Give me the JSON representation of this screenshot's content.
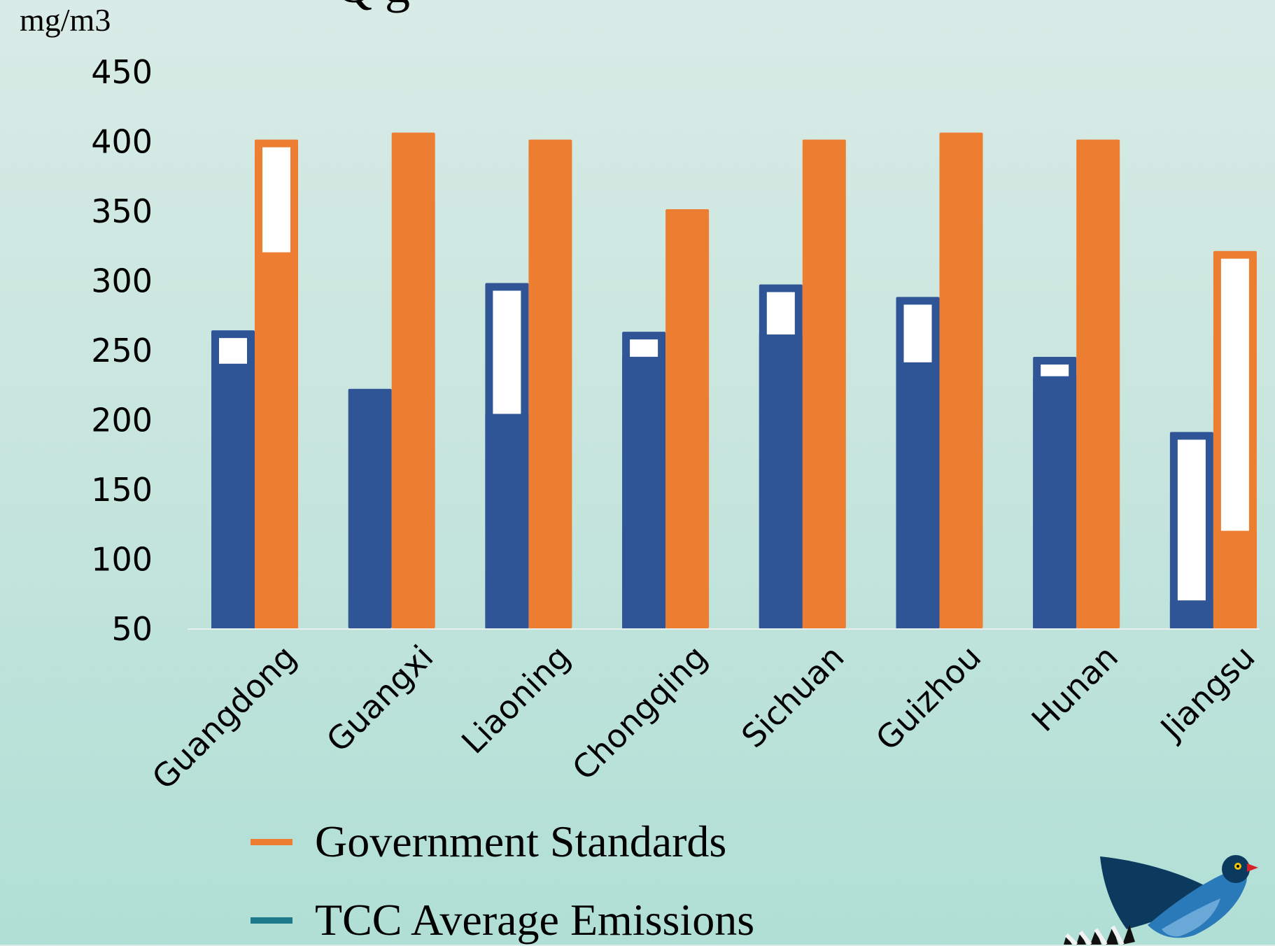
{
  "page": {
    "title_fragment": "Q        g",
    "unit": "mg/m3"
  },
  "colors": {
    "government": "#ed7d31",
    "tcc": "#2f5597",
    "tcc_legend": "#1c7a8a",
    "highlight": "#ffffff"
  },
  "chart_data": {
    "type": "bar",
    "ylabel": "mg/m3",
    "ylim": [
      50,
      450
    ],
    "yticks": [
      50,
      100,
      150,
      200,
      250,
      300,
      350,
      400,
      450
    ],
    "categories": [
      "Guangdong",
      "Guangxi",
      "Liaoning",
      "Chongqing",
      "Sichuan",
      "Guizhou",
      "Hunan",
      "Jiangsu"
    ],
    "series": [
      {
        "name": "TCC Average Emissions",
        "values": [
          264,
          222,
          298,
          263,
          297,
          288,
          245,
          191
        ],
        "inner_values": [
          240,
          222,
          204,
          245,
          261,
          241,
          231,
          70
        ]
      },
      {
        "name": "Government Standards",
        "values": [
          401,
          406,
          401,
          351,
          401,
          406,
          401,
          321
        ],
        "inner_values": [
          320,
          406,
          401,
          351,
          401,
          403,
          401,
          120
        ]
      }
    ],
    "grid": false,
    "legend_position": "bottom-left"
  },
  "legend": [
    {
      "label": "Government Standards",
      "color": "#ed7d31"
    },
    {
      "label": "TCC Average Emissions",
      "color": "#1c7a8a"
    }
  ],
  "logo": {
    "icon": "bird-logo-icon"
  }
}
